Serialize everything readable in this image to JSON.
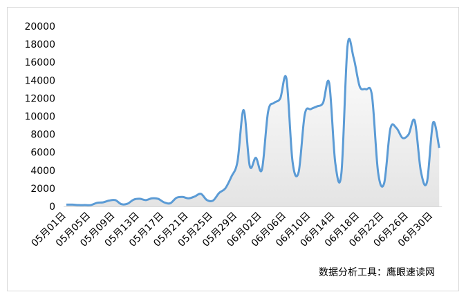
{
  "chart_data": {
    "type": "line",
    "annotation": "数据分析工具：鹰眼速读网",
    "categories": [
      "05月01日",
      null,
      null,
      null,
      "05月05日",
      null,
      null,
      null,
      "05月09日",
      null,
      null,
      null,
      "05月13日",
      null,
      null,
      null,
      "05月17日",
      null,
      null,
      null,
      "05月21日",
      null,
      null,
      null,
      "05月25日",
      null,
      null,
      null,
      "05月29日",
      null,
      null,
      null,
      "06月02日",
      null,
      null,
      null,
      "06月06日",
      null,
      null,
      null,
      "06月10日",
      null,
      null,
      null,
      "06月14日",
      null,
      null,
      null,
      "06月18日",
      null,
      null,
      null,
      "06月22日",
      null,
      null,
      null,
      "06月26日",
      null,
      null,
      null,
      "06月30日",
      null
    ],
    "values": [
      200,
      200,
      150,
      150,
      150,
      400,
      450,
      650,
      700,
      250,
      300,
      750,
      850,
      700,
      900,
      850,
      450,
      350,
      950,
      1050,
      900,
      1100,
      1400,
      700,
      650,
      1500,
      2000,
      3300,
      5000,
      10700,
      4500,
      5400,
      4100,
      10500,
      11500,
      12000,
      14200,
      5000,
      3800,
      10200,
      10800,
      11100,
      11500,
      13700,
      4800,
      3700,
      17800,
      16500,
      13300,
      13000,
      12300,
      3800,
      2600,
      8600,
      8700,
      7600,
      8000,
      9500,
      3900,
      2700,
      9300,
      6500
    ],
    "color": "#5b9bd5",
    "ylim": [
      0,
      20000
    ],
    "yticks": [
      0,
      2000,
      4000,
      6000,
      8000,
      10000,
      12000,
      14000,
      16000,
      18000,
      20000
    ]
  }
}
